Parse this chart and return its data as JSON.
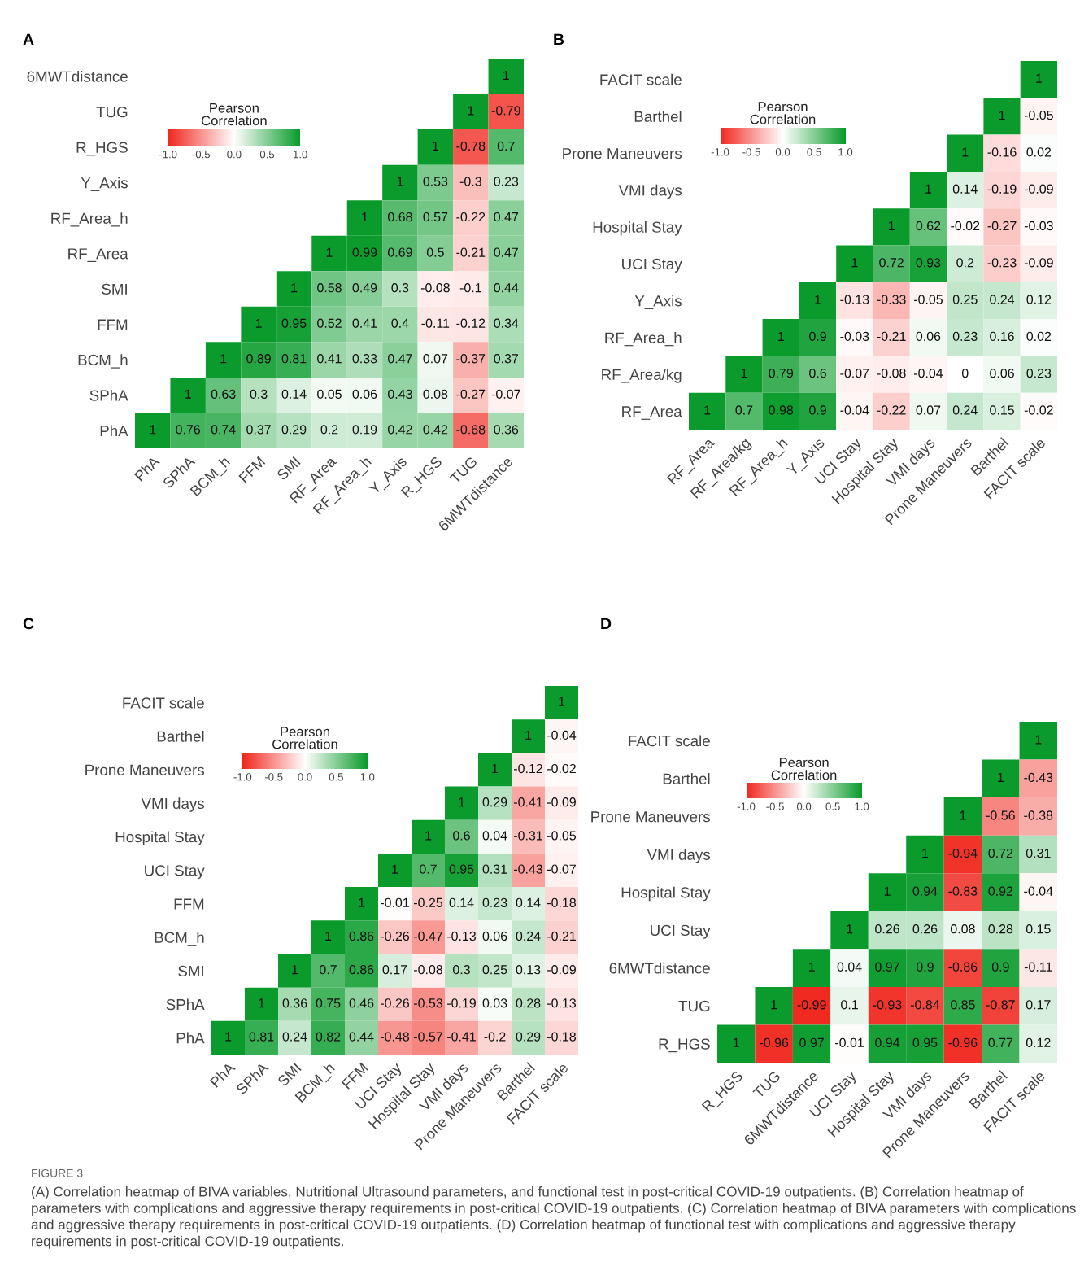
{
  "chart_data": [
    {
      "type": "heatmap",
      "title": "A",
      "clabel": "Pearson\nCorrelation",
      "clim": [
        -1,
        1
      ],
      "cticks": [
        {
          "value": -1,
          "label": "-1.0"
        },
        {
          "value": -0.5,
          "label": "-0.5"
        },
        {
          "value": 0,
          "label": "0.0"
        },
        {
          "value": 0.5,
          "label": "0.5"
        },
        {
          "value": 1,
          "label": "1.0"
        }
      ],
      "data_labels": true,
      "grid": false,
      "categories": [
        "PhA",
        "SPhA",
        "BCM_h",
        "FFM",
        "SMI",
        "RF_Area",
        "RF_Area_h",
        "Y_Axis",
        "R_HGS",
        "TUG",
        "6MWTdistance"
      ],
      "y_categories": [
        "6MWTdistance",
        "TUG",
        "R_HGS",
        "Y_Axis",
        "RF_Area_h",
        "RF_Area",
        "SMI",
        "FFM",
        "BCM_h",
        "SPhA",
        "PhA"
      ],
      "cells": [
        [
          null,
          null,
          null,
          null,
          null,
          null,
          null,
          null,
          null,
          null,
          1
        ],
        [
          null,
          null,
          null,
          null,
          null,
          null,
          null,
          null,
          null,
          1,
          -0.79
        ],
        [
          null,
          null,
          null,
          null,
          null,
          null,
          null,
          null,
          1,
          -0.78,
          0.7
        ],
        [
          null,
          null,
          null,
          null,
          null,
          null,
          null,
          1,
          0.53,
          -0.3,
          0.23
        ],
        [
          null,
          null,
          null,
          null,
          null,
          null,
          1,
          0.68,
          0.57,
          -0.22,
          0.47
        ],
        [
          null,
          null,
          null,
          null,
          null,
          1,
          0.99,
          0.69,
          0.5,
          -0.21,
          0.47
        ],
        [
          null,
          null,
          null,
          null,
          1,
          0.58,
          0.49,
          0.3,
          -0.08,
          -0.1,
          0.44
        ],
        [
          null,
          null,
          null,
          1,
          0.95,
          0.52,
          0.41,
          0.4,
          -0.11,
          -0.12,
          0.34
        ],
        [
          null,
          null,
          1,
          0.89,
          0.81,
          0.41,
          0.33,
          0.47,
          0.07,
          -0.37,
          0.37
        ],
        [
          null,
          1,
          0.63,
          0.3,
          0.14,
          0.05,
          0.06,
          0.43,
          0.08,
          -0.27,
          -0.07
        ],
        [
          1,
          0.76,
          0.74,
          0.37,
          0.29,
          0.2,
          0.19,
          0.42,
          0.42,
          -0.68,
          0.36
        ]
      ]
    },
    {
      "type": "heatmap",
      "title": "B",
      "clabel": "Pearson\nCorrelation",
      "clim": [
        -1,
        1
      ],
      "cticks": [
        {
          "value": -1,
          "label": "-1.0"
        },
        {
          "value": -0.5,
          "label": "-0.5"
        },
        {
          "value": 0,
          "label": "0.0"
        },
        {
          "value": 0.5,
          "label": "0.5"
        },
        {
          "value": 1,
          "label": "1.0"
        }
      ],
      "data_labels": true,
      "grid": false,
      "categories": [
        "RF_Area",
        "RF_Area/kg",
        "RF_Area_h",
        "Y_Axis",
        "UCI Stay",
        "Hospital Stay",
        "VMI days",
        "Prone Maneuvers",
        "Barthel",
        "FACIT scale"
      ],
      "y_categories": [
        "FACIT scale",
        "Barthel",
        "Prone Maneuvers",
        "VMI days",
        "Hospital Stay",
        "UCI Stay",
        "Y_Axis",
        "RF_Area_h",
        "RF_Area/kg",
        "RF_Area"
      ],
      "cells": [
        [
          null,
          null,
          null,
          null,
          null,
          null,
          null,
          null,
          null,
          1
        ],
        [
          null,
          null,
          null,
          null,
          null,
          null,
          null,
          null,
          1,
          -0.05
        ],
        [
          null,
          null,
          null,
          null,
          null,
          null,
          null,
          1,
          -0.16,
          0.02
        ],
        [
          null,
          null,
          null,
          null,
          null,
          null,
          1,
          0.14,
          -0.19,
          -0.09
        ],
        [
          null,
          null,
          null,
          null,
          null,
          1,
          0.62,
          -0.02,
          -0.27,
          -0.03
        ],
        [
          null,
          null,
          null,
          null,
          1,
          0.72,
          0.93,
          0.2,
          -0.23,
          -0.09
        ],
        [
          null,
          null,
          null,
          1,
          -0.13,
          -0.33,
          -0.05,
          0.25,
          0.24,
          0.12
        ],
        [
          null,
          null,
          1,
          0.9,
          -0.03,
          -0.21,
          0.06,
          0.23,
          0.16,
          0.02
        ],
        [
          null,
          1,
          0.79,
          0.6,
          -0.07,
          -0.08,
          -0.04,
          0,
          0.06,
          0.23
        ],
        [
          1,
          0.7,
          0.98,
          0.9,
          -0.04,
          -0.22,
          0.07,
          0.24,
          0.15,
          -0.02
        ]
      ]
    },
    {
      "type": "heatmap",
      "title": "C",
      "clabel": "Pearson\nCorrelation",
      "clim": [
        -1,
        1
      ],
      "cticks": [
        {
          "value": -1,
          "label": "-1.0"
        },
        {
          "value": -0.5,
          "label": "-0.5"
        },
        {
          "value": 0,
          "label": "0.0"
        },
        {
          "value": 0.5,
          "label": "0.5"
        },
        {
          "value": 1,
          "label": "1.0"
        }
      ],
      "data_labels": true,
      "grid": false,
      "categories": [
        "PhA",
        "SPhA",
        "SMI",
        "BCM_h",
        "FFM",
        "UCI Stay",
        "Hospital Stay",
        "VMI days",
        "Prone Maneuvers",
        "Barthel",
        "FACIT scale"
      ],
      "y_categories": [
        "FACIT scale",
        "Barthel",
        "Prone Maneuvers",
        "VMI days",
        "Hospital Stay",
        "UCI Stay",
        "FFM",
        "BCM_h",
        "SMI",
        "SPhA",
        "PhA"
      ],
      "cells": [
        [
          null,
          null,
          null,
          null,
          null,
          null,
          null,
          null,
          null,
          null,
          1
        ],
        [
          null,
          null,
          null,
          null,
          null,
          null,
          null,
          null,
          null,
          1,
          -0.04
        ],
        [
          null,
          null,
          null,
          null,
          null,
          null,
          null,
          null,
          1,
          -0.12,
          -0.02
        ],
        [
          null,
          null,
          null,
          null,
          null,
          null,
          null,
          1,
          0.29,
          -0.41,
          -0.09
        ],
        [
          null,
          null,
          null,
          null,
          null,
          null,
          1,
          0.6,
          0.04,
          -0.31,
          -0.05
        ],
        [
          null,
          null,
          null,
          null,
          null,
          1,
          0.7,
          0.95,
          0.31,
          -0.43,
          -0.07
        ],
        [
          null,
          null,
          null,
          null,
          1,
          -0.01,
          -0.25,
          0.14,
          0.23,
          0.14,
          -0.18
        ],
        [
          null,
          null,
          null,
          1,
          0.86,
          -0.26,
          -0.47,
          -0.13,
          0.06,
          0.24,
          -0.21
        ],
        [
          null,
          null,
          1,
          0.7,
          0.86,
          0.17,
          -0.08,
          0.3,
          0.25,
          0.13,
          -0.09
        ],
        [
          null,
          1,
          0.36,
          0.75,
          0.46,
          -0.26,
          -0.53,
          -0.19,
          0.03,
          0.28,
          -0.13
        ],
        [
          1,
          0.81,
          0.24,
          0.82,
          0.44,
          -0.48,
          -0.57,
          -0.41,
          -0.2,
          0.29,
          -0.18
        ]
      ]
    },
    {
      "type": "heatmap",
      "title": "D",
      "clabel": "Pearson\nCorrelation",
      "clim": [
        -1,
        1
      ],
      "cticks": [
        {
          "value": -1,
          "label": "-1.0"
        },
        {
          "value": -0.5,
          "label": "-0.5"
        },
        {
          "value": 0,
          "label": "0.0"
        },
        {
          "value": 0.5,
          "label": "0.5"
        },
        {
          "value": 1,
          "label": "1.0"
        }
      ],
      "data_labels": true,
      "grid": false,
      "categories": [
        "R_HGS",
        "TUG",
        "6MWTdistance",
        "UCI Stay",
        "Hospital Stay",
        "VMI days",
        "Prone Maneuvers",
        "Barthel",
        "FACIT scale"
      ],
      "y_categories": [
        "FACIT scale",
        "Barthel",
        "Prone Maneuvers",
        "VMI days",
        "Hospital Stay",
        "UCI Stay",
        "6MWTdistance",
        "TUG",
        "R_HGS"
      ],
      "cells": [
        [
          null,
          null,
          null,
          null,
          null,
          null,
          null,
          null,
          1
        ],
        [
          null,
          null,
          null,
          null,
          null,
          null,
          null,
          1,
          -0.43
        ],
        [
          null,
          null,
          null,
          null,
          null,
          null,
          1,
          -0.56,
          -0.38
        ],
        [
          null,
          null,
          null,
          null,
          null,
          1,
          -0.94,
          0.72,
          0.31
        ],
        [
          null,
          null,
          null,
          null,
          1,
          0.94,
          -0.83,
          0.92,
          -0.04
        ],
        [
          null,
          null,
          null,
          1,
          0.26,
          0.26,
          0.08,
          0.28,
          0.15
        ],
        [
          null,
          null,
          1,
          0.04,
          0.97,
          0.9,
          -0.86,
          0.9,
          -0.11
        ],
        [
          null,
          1,
          -0.99,
          0.1,
          -0.93,
          -0.84,
          0.85,
          -0.87,
          0.17
        ],
        [
          1,
          -0.96,
          0.97,
          -0.01,
          0.94,
          0.95,
          -0.96,
          0.77,
          0.12
        ]
      ],
      "annotations": [
        "FIGURE 3",
        "(A) Correlation heatmap of BIVA variables, Nutritional Ultrasound parameters, and functional test in post-critical COVID-19 outpatients. (B) Correlation heatmap of parameters with complications and aggressive therapy requirements in post-critical COVID-19 outpatients. (C) Correlation heatmap of BIVA parameters with complications and aggressive therapy requirements in post-critical COVID-19 outpatients. (D) Correlation heatmap of functional test with complications and aggressive therapy requirements in post-critical COVID-19 outpatients."
      ]
    }
  ]
}
